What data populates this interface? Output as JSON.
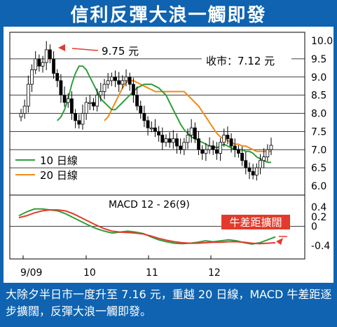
{
  "title": "信利反彈大浪一觸即發",
  "caption": "大除夕半日市一度升至 7.16 元，重越 20 日線，MACD 牛差距逐步擴闊，反彈大浪一觸即發。",
  "colors": {
    "frame": "#0f63b0",
    "ma10": "#2e9e3a",
    "ma20": "#f08a1c",
    "macd": "#2e9e3a",
    "signal": "#e23b2b",
    "annotation_red": "#e23b2b",
    "grid": "#000000"
  },
  "chart_data": [
    {
      "type": "candlestick",
      "title": "",
      "x_tick_labels": [
        "9/09",
        "10",
        "11",
        "12"
      ],
      "ylim": [
        6.0,
        10.0
      ],
      "y_ticks": [
        "10.0",
        "9.5",
        "9.0",
        "8.5",
        "8.0",
        "7.5",
        "7.0",
        "6.5",
        "6.0"
      ],
      "grid": true,
      "annotations": {
        "peak": "9.75 元",
        "close": "收市：7.12 元"
      },
      "legend": {
        "position": "bottom-left",
        "entries": [
          "10 日線",
          "20 日線"
        ]
      },
      "close_series": [
        8.0,
        8.2,
        8.8,
        9.2,
        9.5,
        9.3,
        9.4,
        9.75,
        9.5,
        9.1,
        8.9,
        8.5,
        8.3,
        8.4,
        8.0,
        7.8,
        7.7,
        8.0,
        8.3,
        8.3,
        8.2,
        8.5,
        8.6,
        8.8,
        8.9,
        9.0,
        8.9,
        8.8,
        8.9,
        9.0,
        8.8,
        8.5,
        8.2,
        8.0,
        7.8,
        7.6,
        7.6,
        7.5,
        7.4,
        7.2,
        7.3,
        7.2,
        7.3,
        7.1,
        7.0,
        7.2,
        7.4,
        7.6,
        7.3,
        7.0,
        6.9,
        7.0,
        7.1,
        7.0,
        6.9,
        7.2,
        7.4,
        7.3,
        7.1,
        7.0,
        6.9,
        6.7,
        6.5,
        6.4,
        6.3,
        6.5,
        6.7,
        6.8,
        7.0,
        7.12
      ],
      "ma10": [
        7.8,
        7.9,
        8.1,
        8.4,
        8.8,
        9.1,
        9.3,
        9.3,
        9.2,
        9.0,
        8.8,
        8.6,
        8.4,
        8.3,
        8.2,
        8.1,
        8.1,
        8.2,
        8.3,
        8.4,
        8.5,
        8.6,
        8.7,
        8.75,
        8.8,
        8.8,
        8.8,
        8.75,
        8.7,
        8.6,
        8.5,
        8.3,
        8.1,
        7.9,
        7.7,
        7.55,
        7.45,
        7.35,
        7.3,
        7.25,
        7.2,
        7.15,
        7.1,
        7.1,
        7.05,
        7.1,
        7.15,
        7.1,
        7.05,
        7.0,
        7.0,
        7.0,
        6.95,
        6.95,
        6.9,
        6.8,
        6.75,
        6.7,
        6.65,
        6.65
      ],
      "ma20": [
        7.8,
        7.9,
        8.1,
        8.3,
        8.5,
        8.7,
        8.85,
        8.9,
        8.9,
        8.85,
        8.8,
        8.75,
        8.7,
        8.65,
        8.6,
        8.6,
        8.6,
        8.6,
        8.6,
        8.6,
        8.6,
        8.6,
        8.6,
        8.5,
        8.4,
        8.3,
        8.2,
        8.05,
        7.9,
        7.75,
        7.6,
        7.45,
        7.35,
        7.3,
        7.25,
        7.2,
        7.15,
        7.15,
        7.1,
        7.1,
        7.05,
        7.0,
        6.95,
        6.95,
        6.95,
        6.95,
        6.95
      ]
    },
    {
      "type": "line",
      "title": "MACD 12 - 26(9)",
      "ylim": [
        -0.4,
        0.4
      ],
      "y_ticks": [
        "0.4",
        "0.2",
        "0",
        "-0.4"
      ],
      "annotation": "牛差距擴闊",
      "series": [
        {
          "name": "",
          "values": [
            0.22,
            0.3,
            0.36,
            0.36,
            0.34,
            0.32,
            0.26,
            0.18,
            0.1,
            0.02,
            -0.05,
            -0.1,
            -0.14,
            -0.12,
            -0.1,
            -0.12,
            -0.15,
            -0.22,
            -0.28,
            -0.32,
            -0.35,
            -0.36,
            -0.35,
            -0.33,
            -0.3,
            -0.32,
            -0.3,
            -0.28,
            -0.3,
            -0.34,
            -0.37,
            -0.34,
            -0.28,
            -0.22
          ]
        },
        {
          "name": "",
          "values": [
            0.18,
            0.22,
            0.28,
            0.32,
            0.34,
            0.34,
            0.32,
            0.26,
            0.18,
            0.1,
            0.02,
            -0.05,
            -0.1,
            -0.12,
            -0.13,
            -0.14,
            -0.16,
            -0.2,
            -0.25,
            -0.29,
            -0.32,
            -0.34,
            -0.35,
            -0.35,
            -0.34,
            -0.33,
            -0.33,
            -0.32,
            -0.32,
            -0.33,
            -0.35,
            -0.36,
            -0.35,
            -0.34
          ]
        }
      ]
    }
  ]
}
